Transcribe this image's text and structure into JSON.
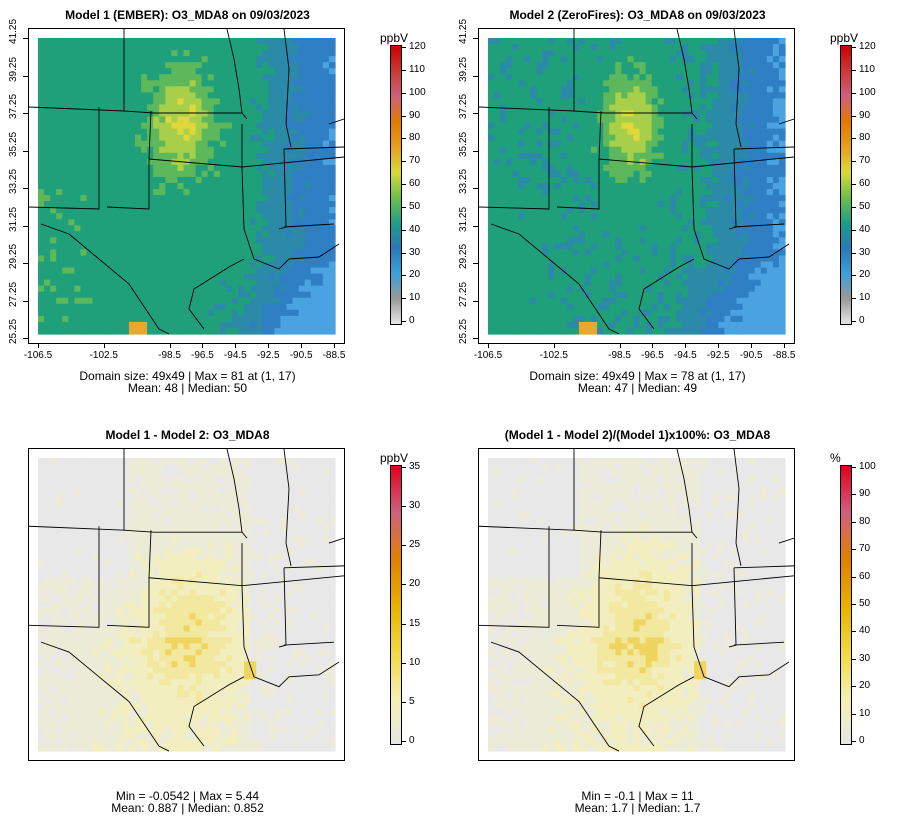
{
  "panels": [
    {
      "title": "Model 1 (EMBER): O3_MDA8 on 09/03/2023",
      "stats": [
        "Domain size: 49x49 | Max = 81 at (1, 17)",
        "Mean: 48 |  Median: 50"
      ],
      "y_ticks": [
        "41.25",
        "39.25",
        "37.25",
        "35.25",
        "33.25",
        "31.25",
        "29.25",
        "27.25",
        "25.25"
      ],
      "x_ticks": [
        "-106.5",
        "-102.5",
        "-98.5",
        "-96.5",
        "-94.5",
        "-92.5",
        "-90.5",
        "-88.5"
      ],
      "colorbar": {
        "unit": "ppbV",
        "ticks": [
          "120",
          "110",
          "100",
          "90",
          "80",
          "70",
          "60",
          "50",
          "40",
          "30",
          "20",
          "10",
          "0"
        ]
      },
      "mode": "abs"
    },
    {
      "title": "Model 2 (ZeroFires): O3_MDA8 on 09/03/2023",
      "stats": [
        "Domain size: 49x49 | Max = 78 at (1, 17)",
        "Mean: 47 |  Median: 49"
      ],
      "y_ticks": [
        "41.25",
        "39.25",
        "37.25",
        "35.25",
        "33.25",
        "31.25",
        "29.25",
        "27.25",
        "25.25"
      ],
      "x_ticks": [
        "-106.5",
        "-102.5",
        "-98.5",
        "-96.5",
        "-94.5",
        "-92.5",
        "-90.5",
        "-88.5"
      ],
      "colorbar": {
        "unit": "ppbV",
        "ticks": [
          "120",
          "110",
          "100",
          "90",
          "80",
          "70",
          "60",
          "50",
          "40",
          "30",
          "20",
          "10",
          "0"
        ]
      },
      "mode": "abs"
    },
    {
      "title": "Model 1 - Model 2: O3_MDA8",
      "stats": [
        "Min = -0.0542 | Max = 5.44",
        "Mean: 0.887 |  Median: 0.852"
      ],
      "y_ticks": [],
      "x_ticks": [],
      "colorbar": {
        "unit": "ppbV",
        "ticks": [
          "35",
          "30",
          "25",
          "20",
          "15",
          "10",
          "5",
          "0"
        ]
      },
      "mode": "diff"
    },
    {
      "title": "(Model 1 - Model 2)/(Model 1)x100%: O3_MDA8",
      "stats": [
        "Min = -0.1 | Max = 11",
        "Mean: 1.7 |  Median: 1.7"
      ],
      "y_ticks": [],
      "x_ticks": [],
      "colorbar": {
        "unit": "%",
        "ticks": [
          "100",
          "90",
          "80",
          "70",
          "60",
          "50",
          "40",
          "30",
          "20",
          "10",
          "0"
        ]
      },
      "mode": "diff"
    }
  ],
  "colors": {
    "abs_scale": [
      "#e6e6e6",
      "#9a9a9a",
      "#3aa0d8",
      "#2a78b8",
      "#1e9e8a",
      "#6dbf4a",
      "#d9d93a",
      "#e6a020",
      "#e07a00",
      "#d0607a",
      "#c83a3a",
      "#cc0000"
    ],
    "diff_scale": [
      "#e6e6e6",
      "#f5f0b0",
      "#f0d840",
      "#e8b000",
      "#e08000",
      "#d06080",
      "#e00020"
    ]
  }
}
